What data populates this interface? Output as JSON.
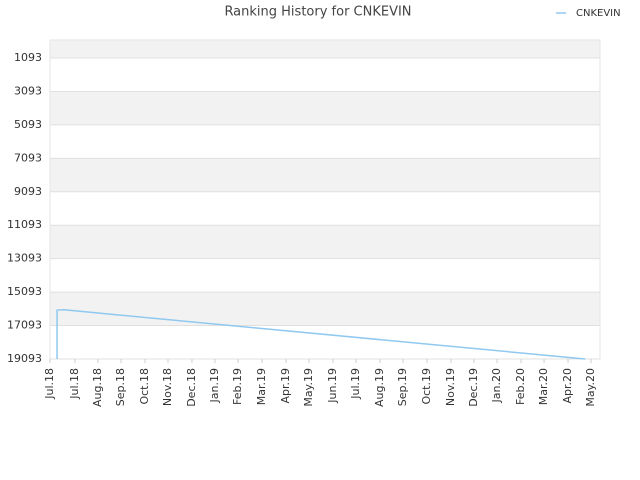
{
  "chart_data": {
    "type": "line",
    "title": "Ranking History for CNKEVIN",
    "x": [
      0.3,
      0.3,
      0.6,
      22.77
    ],
    "series": [
      {
        "name": "CNKEVIN",
        "color": "#90c8f0",
        "values": [
          19093,
          16165,
          16150,
          19093
        ]
      }
    ],
    "ylim": [
      16,
      19093
    ],
    "inverted": true,
    "yticks": [
      1093,
      3093,
      5093,
      7093,
      9093,
      11093,
      13093,
      15093,
      17093,
      19093
    ],
    "xlim": [
      0,
      23.4
    ],
    "xticks": [
      {
        "value": 0,
        "label": "Jul.18"
      },
      {
        "value": 1.06,
        "label": "Jul.18"
      },
      {
        "value": 2.04,
        "label": "Aug.18"
      },
      {
        "value": 3.02,
        "label": "Sep.18"
      },
      {
        "value": 4.04,
        "label": "Oct.18"
      },
      {
        "value": 5.02,
        "label": "Nov.18"
      },
      {
        "value": 6.04,
        "label": "Dec.18"
      },
      {
        "value": 7.02,
        "label": "Jan.19"
      },
      {
        "value": 8.0,
        "label": "Feb.19"
      },
      {
        "value": 9.02,
        "label": "Mar.19"
      },
      {
        "value": 10.04,
        "label": "Apr.19"
      },
      {
        "value": 11.02,
        "label": "May.19"
      },
      {
        "value": 12.04,
        "label": "Jun.19"
      },
      {
        "value": 13.02,
        "label": "Jul.19"
      },
      {
        "value": 14.04,
        "label": "Aug.19"
      },
      {
        "value": 15.02,
        "label": "Sep.19"
      },
      {
        "value": 16.04,
        "label": "Oct.19"
      },
      {
        "value": 17.06,
        "label": "Nov.19"
      },
      {
        "value": 18.04,
        "label": "Dec.19"
      },
      {
        "value": 19.02,
        "label": "Jan.20"
      },
      {
        "value": 20.04,
        "label": "Feb.20"
      },
      {
        "value": 21.02,
        "label": "Mar.20"
      },
      {
        "value": 22.04,
        "label": "Apr.20"
      },
      {
        "value": 23.02,
        "label": "May.20"
      }
    ],
    "grid": true,
    "legend": "top-right"
  }
}
